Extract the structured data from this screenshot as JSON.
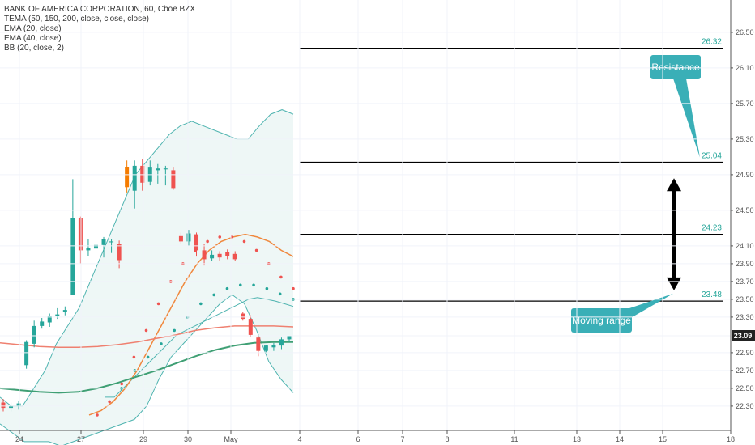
{
  "legend": {
    "title": "BANK OF AMERICA CORPORATION, 60, Cboe BZX",
    "items": [
      "TEMA (50, 150, 200, close, close, close)",
      "EMA (20, close)",
      "EMA (40, close)",
      "BB (20, close, 2)"
    ]
  },
  "colors": {
    "bullish": "#26a69a",
    "bearish": "#ef5350",
    "orange_candle": "#f57c00",
    "ema20": "#f0883e",
    "ema40": "#ef8070",
    "tema": "#3f9f74",
    "bb": "#4fb4b0",
    "bb_fill": "#eef7f6",
    "callout": "#3aafb7",
    "arrow": "#000000"
  },
  "current_price": "23.09",
  "chart_data": {
    "type": "candlestick",
    "y_ticks": [
      "26.50",
      "26.10",
      "25.70",
      "25.30",
      "24.90",
      "24.50",
      "24.10",
      "23.90",
      "23.70",
      "23.50",
      "23.30",
      "23.09",
      "22.90",
      "22.70",
      "22.50",
      "22.30"
    ],
    "x_ticks": [
      "24",
      "27",
      "29",
      "30",
      "May",
      "4",
      "6",
      "7",
      "8",
      "11",
      "13",
      "14",
      "15",
      "18"
    ],
    "levels": [
      {
        "label": "26.32",
        "value": 26.32
      },
      {
        "label": "25.04",
        "value": 25.04
      },
      {
        "label": "24.23",
        "value": 24.23
      },
      {
        "label": "23.48",
        "value": 23.48
      }
    ],
    "annotations": [
      {
        "text": "Resistance"
      },
      {
        "text": "Moving range"
      }
    ],
    "candles": [
      {
        "o": 22.34,
        "h": 22.38,
        "l": 22.24,
        "c": 22.28
      },
      {
        "o": 22.28,
        "h": 22.34,
        "l": 22.24,
        "c": 22.3
      },
      {
        "o": 22.3,
        "h": 22.36,
        "l": 22.26,
        "c": 22.33
      },
      {
        "o": 22.76,
        "h": 23.04,
        "l": 22.72,
        "c": 23.02
      },
      {
        "o": 23.0,
        "h": 23.26,
        "l": 22.96,
        "c": 23.2
      },
      {
        "o": 23.2,
        "h": 23.29,
        "l": 23.17,
        "c": 23.25
      },
      {
        "o": 23.24,
        "h": 23.34,
        "l": 23.19,
        "c": 23.31
      },
      {
        "o": 23.31,
        "h": 23.4,
        "l": 23.28,
        "c": 23.33
      },
      {
        "o": 23.36,
        "h": 23.42,
        "l": 23.32,
        "c": 23.38
      },
      {
        "o": 23.55,
        "h": 24.85,
        "l": 23.55,
        "c": 24.41
      },
      {
        "o": 24.41,
        "h": 24.43,
        "l": 23.9,
        "c": 24.05
      },
      {
        "o": 24.05,
        "h": 24.18,
        "l": 23.99,
        "c": 24.08
      },
      {
        "o": 24.07,
        "h": 24.18,
        "l": 24.04,
        "c": 24.11
      },
      {
        "o": 24.11,
        "h": 24.2,
        "l": 23.97,
        "c": 24.18
      },
      {
        "o": 24.14,
        "h": 24.18,
        "l": 24.02,
        "c": 24.15
      },
      {
        "o": 24.12,
        "h": 24.16,
        "l": 23.85,
        "c": 23.94
      },
      {
        "o": 24.76,
        "h": 25.06,
        "l": 24.7,
        "c": 24.99
      },
      {
        "o": 24.72,
        "h": 25.06,
        "l": 24.52,
        "c": 25.0
      },
      {
        "o": 25.0,
        "h": 25.08,
        "l": 24.72,
        "c": 24.81
      },
      {
        "o": 24.82,
        "h": 25.06,
        "l": 24.78,
        "c": 24.98
      },
      {
        "o": 24.95,
        "h": 25.02,
        "l": 24.8,
        "c": 24.97
      },
      {
        "o": 24.96,
        "h": 25.0,
        "l": 24.78,
        "c": 24.97
      },
      {
        "o": 24.95,
        "h": 24.98,
        "l": 24.73,
        "c": 24.75
      },
      {
        "o": 24.21,
        "h": 24.25,
        "l": 24.12,
        "c": 24.15
      },
      {
        "o": 24.15,
        "h": 24.28,
        "l": 24.1,
        "c": 24.24
      },
      {
        "o": 24.23,
        "h": 24.25,
        "l": 23.98,
        "c": 24.05
      },
      {
        "o": 24.05,
        "h": 24.12,
        "l": 23.88,
        "c": 23.95
      },
      {
        "o": 23.96,
        "h": 24.05,
        "l": 23.93,
        "c": 24.0
      },
      {
        "o": 24.01,
        "h": 24.04,
        "l": 23.93,
        "c": 23.97
      },
      {
        "o": 24.03,
        "h": 24.06,
        "l": 23.95,
        "c": 23.99
      },
      {
        "o": 24.01,
        "h": 24.04,
        "l": 23.93,
        "c": 23.95
      },
      {
        "o": 23.34,
        "h": 23.36,
        "l": 23.26,
        "c": 23.28
      },
      {
        "o": 23.28,
        "h": 23.32,
        "l": 23.08,
        "c": 23.1
      },
      {
        "o": 23.07,
        "h": 23.09,
        "l": 22.86,
        "c": 22.92
      },
      {
        "o": 22.92,
        "h": 22.99,
        "l": 22.9,
        "c": 22.98
      },
      {
        "o": 22.96,
        "h": 23.01,
        "l": 22.92,
        "c": 22.99
      },
      {
        "o": 22.98,
        "h": 23.07,
        "l": 22.94,
        "c": 23.05
      },
      {
        "o": 23.05,
        "h": 23.09,
        "l": 23.02,
        "c": 23.09
      }
    ],
    "bb_upper": [
      22.4,
      22.3,
      22.3,
      22.5,
      22.7,
      23.0,
      23.2,
      23.4,
      23.7,
      24.0,
      24.3,
      24.6,
      24.9,
      25.05,
      25.2,
      25.35,
      25.45,
      25.5,
      25.45,
      25.4,
      25.35,
      25.3,
      25.3,
      25.45,
      25.58,
      25.63,
      25.58
    ],
    "bb_lower": [
      22.1,
      22.0,
      21.9,
      21.9,
      21.9,
      21.85,
      21.9,
      21.95,
      22.0,
      22.05,
      22.1,
      22.15,
      22.3,
      22.6,
      22.85,
      23.0,
      23.15,
      23.3,
      23.45,
      23.55,
      23.45,
      23.15,
      22.8,
      22.6,
      22.45
    ],
    "bb_basis": [
      22.4,
      22.4,
      22.5,
      22.6,
      22.7,
      22.8,
      22.9,
      23.0,
      23.1,
      23.15,
      23.2,
      23.25,
      23.3,
      23.35,
      23.4,
      23.45,
      23.5,
      23.52,
      23.5,
      23.48,
      23.45,
      23.42
    ],
    "ema20": [
      22.2,
      22.25,
      22.35,
      22.5,
      22.7,
      22.95,
      23.2,
      23.45,
      23.7,
      23.9,
      24.05,
      24.15,
      24.2,
      24.23,
      24.2,
      24.15,
      24.05,
      23.98
    ],
    "ema40": [
      23.01,
      22.99,
      22.97,
      22.96,
      22.96,
      22.97,
      22.99,
      23.02,
      23.06,
      23.1,
      23.15,
      23.18,
      23.2,
      23.2,
      23.2,
      23.19
    ],
    "tema": [
      22.5,
      22.48,
      22.46,
      22.45,
      22.46,
      22.5,
      22.56,
      22.63,
      22.7,
      22.78,
      22.86,
      22.93,
      22.98,
      23.01,
      23.02,
      23.02
    ],
    "dots1": [
      22.2,
      22.35,
      22.55,
      22.85,
      23.15,
      23.45,
      23.7,
      23.9,
      24.05,
      24.15,
      24.2,
      24.2,
      24.15,
      24.05,
      23.9,
      23.75,
      23.62
    ],
    "dots2": [
      22.5,
      22.7,
      22.85,
      23.0,
      23.15,
      23.3,
      23.45,
      23.55,
      23.62,
      23.66,
      23.66,
      23.62,
      23.56,
      23.5
    ]
  }
}
